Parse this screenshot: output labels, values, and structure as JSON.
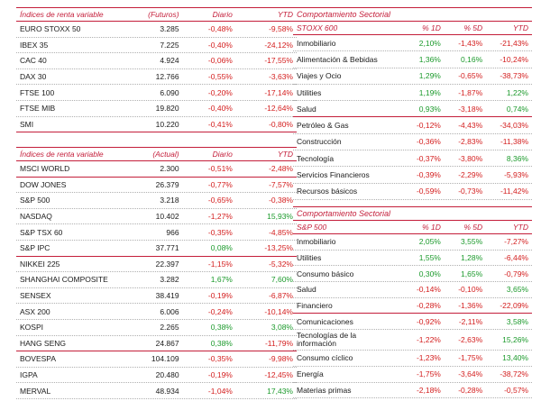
{
  "left_top": {
    "headers": [
      "Índices de renta variable",
      "(Futuros)",
      "Diario",
      "YTD"
    ],
    "rows": [
      {
        "name": "EURO STOXX 50",
        "value": "3.285",
        "daily": "-0,48%",
        "ytd": "-9,58%",
        "sep": false
      },
      {
        "name": "IBEX 35",
        "value": "7.225",
        "daily": "-0,40%",
        "ytd": "-24,12%",
        "sep": false
      },
      {
        "name": "CAC 40",
        "value": "4.924",
        "daily": "-0,06%",
        "ytd": "-17,55%",
        "sep": false
      },
      {
        "name": "DAX 30",
        "value": "12.766",
        "daily": "-0,55%",
        "ytd": "-3,63%",
        "sep": false
      },
      {
        "name": "FTSE 100",
        "value": "6.090",
        "daily": "-0,20%",
        "ytd": "-17,14%",
        "sep": false
      },
      {
        "name": "FTSE MIB",
        "value": "19.820",
        "daily": "-0,40%",
        "ytd": "-12,64%",
        "sep": false
      },
      {
        "name": "SMI",
        "value": "10.220",
        "daily": "-0,41%",
        "ytd": "-0,80%",
        "sep": true
      }
    ]
  },
  "left_bottom": {
    "headers": [
      "Índices de renta variable",
      "(Actual)",
      "Diario",
      "YTD"
    ],
    "rows": [
      {
        "name": "MSCI WORLD",
        "value": "2.300",
        "daily": "-0,51%",
        "ytd": "-2,48%",
        "sep": true
      },
      {
        "name": "DOW JONES",
        "value": "26.379",
        "daily": "-0,77%",
        "ytd": "-7,57%",
        "sep": false
      },
      {
        "name": "S&P 500",
        "value": "3.218",
        "daily": "-0,65%",
        "ytd": "-0,38%",
        "sep": false
      },
      {
        "name": "NASDAQ",
        "value": "10.402",
        "daily": "-1,27%",
        "ytd": "15,93%",
        "sep": false
      },
      {
        "name": "S&P TSX 60",
        "value": "966",
        "daily": "-0,35%",
        "ytd": "-4,85%",
        "sep": false
      },
      {
        "name": "S&P IPC",
        "value": "37.771",
        "daily": "0,08%",
        "ytd": "-13,25%",
        "sep": true
      },
      {
        "name": "NIKKEI 225",
        "value": "22.397",
        "daily": "-1,15%",
        "ytd": "-5,32%",
        "sep": false
      },
      {
        "name": "SHANGHAI COMPOSITE",
        "value": "3.282",
        "daily": "1,67%",
        "ytd": "7,60%",
        "sep": false
      },
      {
        "name": "SENSEX",
        "value": "38.419",
        "daily": "-0,19%",
        "ytd": "-6,87%",
        "sep": false
      },
      {
        "name": "ASX 200",
        "value": "6.006",
        "daily": "-0,24%",
        "ytd": "-10,14%",
        "sep": false
      },
      {
        "name": "KOSPI",
        "value": "2.265",
        "daily": "0,38%",
        "ytd": "3,08%",
        "sep": false
      },
      {
        "name": "HANG SENG",
        "value": "24.867",
        "daily": "0,38%",
        "ytd": "-11,79%",
        "sep": true
      },
      {
        "name": "BOVESPA",
        "value": "104.109",
        "daily": "-0,35%",
        "ytd": "-9,98%",
        "sep": false
      },
      {
        "name": "IGPA",
        "value": "20.480",
        "daily": "-0,19%",
        "ytd": "-12,45%",
        "sep": false
      },
      {
        "name": "MERVAL",
        "value": "48.934",
        "daily": "-1,04%",
        "ytd": "17,43%",
        "sep": false
      }
    ]
  },
  "right_top": {
    "title": "Comportamiento Sectorial",
    "headers": [
      "STOXX 600",
      "% 1D",
      "% 5D",
      "YTD"
    ],
    "rows": [
      {
        "name": "Inmobiliario",
        "d1": "2,10%",
        "d5": "-1,43%",
        "ytd": "-21,43%",
        "sep": false
      },
      {
        "name": "Alimentación & Bebidas",
        "d1": "1,36%",
        "d5": "0,16%",
        "ytd": "-10,24%",
        "sep": false
      },
      {
        "name": "Viajes y Ocio",
        "d1": "1,29%",
        "d5": "-0,65%",
        "ytd": "-38,73%",
        "sep": false
      },
      {
        "name": "Utilities",
        "d1": "1,19%",
        "d5": "-1,87%",
        "ytd": "1,22%",
        "sep": false
      },
      {
        "name": "Salud",
        "d1": "0,93%",
        "d5": "-3,18%",
        "ytd": "0,74%",
        "sep": true
      },
      {
        "name": "Petróleo & Gas",
        "d1": "-0,12%",
        "d5": "-4,43%",
        "ytd": "-34,03%",
        "sep": false
      },
      {
        "name": "Construcción",
        "d1": "-0,36%",
        "d5": "-2,83%",
        "ytd": "-11,38%",
        "sep": false
      },
      {
        "name": "Tecnología",
        "d1": "-0,37%",
        "d5": "-3,80%",
        "ytd": "8,36%",
        "sep": false
      },
      {
        "name": "Servicios Financieros",
        "d1": "-0,39%",
        "d5": "-2,29%",
        "ytd": "-5,93%",
        "sep": false
      },
      {
        "name": "Recursos básicos",
        "d1": "-0,59%",
        "d5": "-0,73%",
        "ytd": "-11,42%",
        "sep": false
      }
    ]
  },
  "right_bottom": {
    "title": "Comportamiento Sectorial",
    "headers": [
      "S&P 500",
      "% 1D",
      "% 5D",
      "YTD"
    ],
    "rows": [
      {
        "name": "Inmobiliario",
        "d1": "2,05%",
        "d5": "3,55%",
        "ytd": "-7,27%",
        "sep": false,
        "tall": false
      },
      {
        "name": "Utilities",
        "d1": "1,55%",
        "d5": "1,28%",
        "ytd": "-6,44%",
        "sep": false,
        "tall": false
      },
      {
        "name": "Consumo básico",
        "d1": "0,30%",
        "d5": "1,65%",
        "ytd": "-0,79%",
        "sep": false,
        "tall": false
      },
      {
        "name": "Salud",
        "d1": "-0,14%",
        "d5": "-0,10%",
        "ytd": "3,65%",
        "sep": false,
        "tall": false
      },
      {
        "name": "Financiero",
        "d1": "-0,28%",
        "d5": "-1,36%",
        "ytd": "-22,09%",
        "sep": true,
        "tall": false
      },
      {
        "name": "Comunicaciones",
        "d1": "-0,92%",
        "d5": "-2,11%",
        "ytd": "3,58%",
        "sep": false,
        "tall": false
      },
      {
        "name": "Tecnologías de la información",
        "d1": "-1,22%",
        "d5": "-2,63%",
        "ytd": "15,26%",
        "sep": false,
        "tall": true
      },
      {
        "name": "Consumo cíclico",
        "d1": "-1,23%",
        "d5": "-1,75%",
        "ytd": "13,40%",
        "sep": false,
        "tall": false
      },
      {
        "name": "Energía",
        "d1": "-1,75%",
        "d5": "-3,64%",
        "ytd": "-38,72%",
        "sep": false,
        "tall": false
      },
      {
        "name": "Materias primas",
        "d1": "-2,18%",
        "d5": "-0,28%",
        "ytd": "-0,57%",
        "sep": false,
        "tall": false
      }
    ]
  },
  "colors": {
    "accent": "#c41e3a",
    "positive": "#1c9a2c",
    "negative": "#d42020"
  }
}
